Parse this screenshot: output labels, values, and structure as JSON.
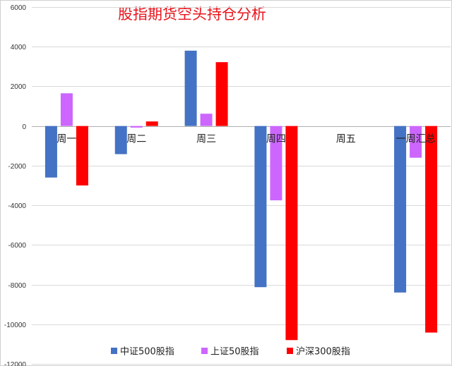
{
  "chart_data": {
    "type": "bar",
    "title": "股指期货空头持仓分析",
    "categories": [
      "周一",
      "周二",
      "周三",
      "周四",
      "周五",
      "一周汇总"
    ],
    "series": [
      {
        "name": "中证500股指",
        "color": "#4472c4",
        "values": [
          -2600,
          -1420,
          3800,
          -8130,
          0,
          -8400
        ]
      },
      {
        "name": "上证50股指",
        "color": "#cc66ff",
        "values": [
          1650,
          -80,
          620,
          -3750,
          0,
          -1600
        ]
      },
      {
        "name": "沪深300股指",
        "color": "#ff0000",
        "values": [
          -3000,
          230,
          3220,
          -10800,
          0,
          -10420
        ]
      }
    ],
    "ylim": [
      -12000,
      6000
    ],
    "yticks": [
      6000,
      4000,
      2000,
      0,
      -2000,
      -4000,
      -6000,
      -8000,
      -10000,
      -12000
    ],
    "grid": true,
    "legend": "bottom"
  }
}
